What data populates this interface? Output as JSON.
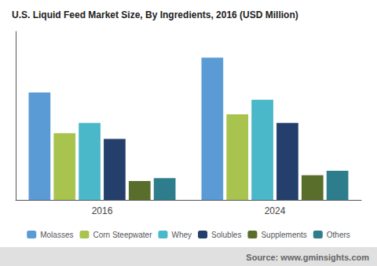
{
  "chart_data": {
    "type": "bar",
    "title": "U.S. Liquid Feed Market Size, By Ingredients, 2016 (USD Million)",
    "categories": [
      "2016",
      "2024"
    ],
    "series": [
      {
        "name": "Molasses",
        "color": "#5b9bd5",
        "values": [
          370,
          490
        ]
      },
      {
        "name": "Corn Steepwater",
        "color": "#a9c34f",
        "values": [
          230,
          295
        ]
      },
      {
        "name": "Whey",
        "color": "#4ab8c8",
        "values": [
          265,
          345
        ]
      },
      {
        "name": "Solubles",
        "color": "#243f6b",
        "values": [
          210,
          265
        ]
      },
      {
        "name": "Supplements",
        "color": "#5a6e2c",
        "values": [
          65,
          85
        ]
      },
      {
        "name": "Others",
        "color": "#2e7d8c",
        "values": [
          75,
          100
        ]
      }
    ],
    "ylim": [
      0,
      580
    ],
    "tick_labels": "x",
    "grid": false,
    "legend": "bottom",
    "annotations": [
      "Source: www.gminsights.com"
    ]
  }
}
